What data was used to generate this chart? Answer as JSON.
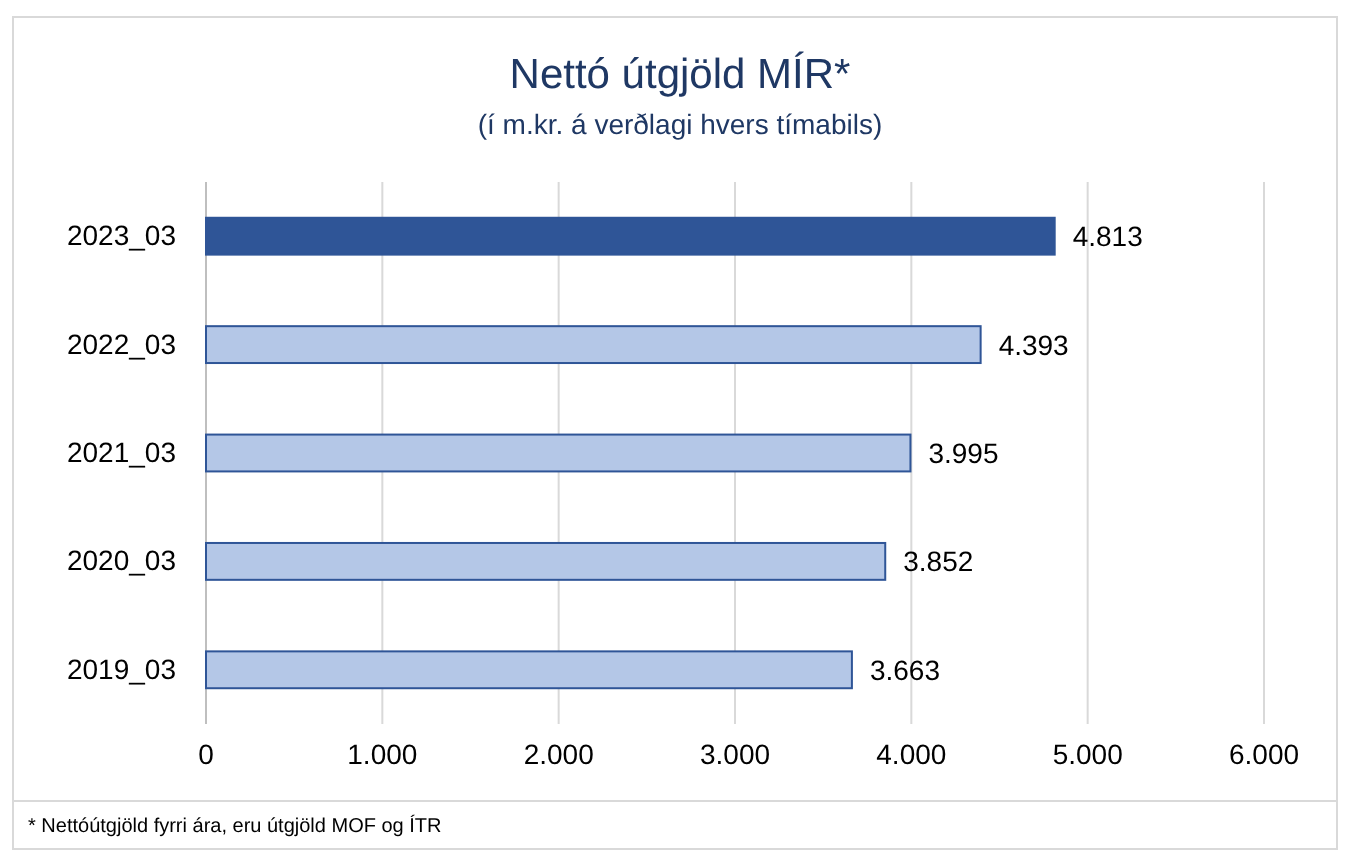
{
  "chart_data": {
    "type": "bar",
    "orientation": "horizontal",
    "title": "Nettó útgjöld MÍR*",
    "subtitle": "(í m.kr. á verðlagi hvers tímabils)",
    "categories": [
      "2023_03",
      "2022_03",
      "2021_03",
      "2020_03",
      "2019_03"
    ],
    "values": [
      4813,
      4393,
      3995,
      3852,
      3663
    ],
    "colors": [
      "#2f5597",
      "#b4c7e7",
      "#b4c7e7",
      "#b4c7e7",
      "#b4c7e7"
    ],
    "value_labels": [
      "4.813",
      "4.393",
      "3.995",
      "3.852",
      "3.663"
    ],
    "xlim": [
      0,
      6000
    ],
    "xticks": [
      0,
      {
        "value": 1000,
        "label": "1.000"
      },
      {
        "value": 2000,
        "label": "2.000"
      },
      {
        "value": 3000,
        "label": "3.000"
      },
      {
        "value": 4000,
        "label": "4.000"
      },
      {
        "value": 5000,
        "label": "5.000"
      },
      {
        "value": 6000,
        "label": "6.000"
      }
    ],
    "grid": "x",
    "annotations": [
      "* Nettóútgjöld fyrri ára, eru útgjöld MOF og ÍTR"
    ]
  }
}
